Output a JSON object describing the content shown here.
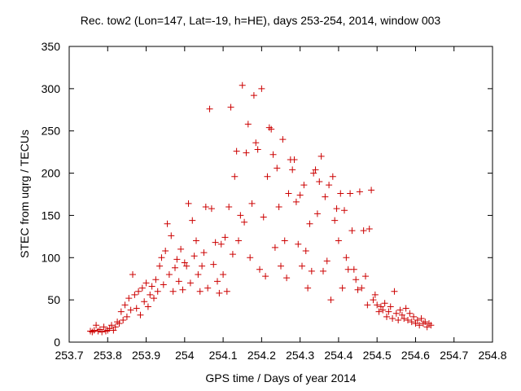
{
  "chart_data": {
    "type": "scatter",
    "title": "Rec. tow2 (Lon=147, Lat=-19, h=HE), days 253-254, 2014, window 003",
    "xlabel": "GPS time / Days of year 2014",
    "ylabel": "STEC from uqrg / TECUs",
    "xlim": [
      253.7,
      254.8
    ],
    "ylim": [
      0,
      350
    ],
    "xticks": [
      253.7,
      253.8,
      253.9,
      254.0,
      254.1,
      254.2,
      254.3,
      254.4,
      254.5,
      254.6,
      254.7,
      254.8
    ],
    "xtick_labels": [
      "253.7",
      "253.8",
      "253.9",
      "254",
      "254.1",
      "254.2",
      "254.3",
      "254.4",
      "254.5",
      "254.6",
      "254.7",
      "254.8"
    ],
    "yticks": [
      0,
      50,
      100,
      150,
      200,
      250,
      300,
      350
    ],
    "ytick_labels": [
      "0",
      "50",
      "100",
      "150",
      "200",
      "250",
      "300",
      "350"
    ],
    "grid": false,
    "marker": "plus",
    "color": "#cc0000",
    "series": [
      {
        "points": [
          [
            253.755,
            13
          ],
          [
            253.76,
            12
          ],
          [
            253.765,
            14
          ],
          [
            253.77,
            20
          ],
          [
            253.775,
            13
          ],
          [
            253.78,
            15
          ],
          [
            253.785,
            12
          ],
          [
            253.79,
            18
          ],
          [
            253.795,
            13
          ],
          [
            253.8,
            14
          ],
          [
            253.805,
            16
          ],
          [
            253.81,
            20
          ],
          [
            253.815,
            14
          ],
          [
            253.82,
            18
          ],
          [
            253.825,
            24
          ],
          [
            253.83,
            22
          ],
          [
            253.835,
            36
          ],
          [
            253.84,
            26
          ],
          [
            253.845,
            44
          ],
          [
            253.85,
            30
          ],
          [
            253.855,
            52
          ],
          [
            253.86,
            38
          ],
          [
            253.865,
            80
          ],
          [
            253.87,
            56
          ],
          [
            253.875,
            40
          ],
          [
            253.88,
            60
          ],
          [
            253.885,
            32
          ],
          [
            253.89,
            64
          ],
          [
            253.895,
            48
          ],
          [
            253.9,
            70
          ],
          [
            253.905,
            42
          ],
          [
            253.91,
            56
          ],
          [
            253.915,
            66
          ],
          [
            253.92,
            52
          ],
          [
            253.925,
            74
          ],
          [
            253.93,
            60
          ],
          [
            253.935,
            90
          ],
          [
            253.94,
            100
          ],
          [
            253.945,
            68
          ],
          [
            253.95,
            108
          ],
          [
            253.955,
            140
          ],
          [
            253.96,
            80
          ],
          [
            253.965,
            126
          ],
          [
            253.97,
            60
          ],
          [
            253.975,
            88
          ],
          [
            253.98,
            98
          ],
          [
            253.985,
            72
          ],
          [
            253.99,
            110
          ],
          [
            253.995,
            62
          ],
          [
            254.0,
            94
          ],
          [
            254.005,
            90
          ],
          [
            254.01,
            164
          ],
          [
            254.015,
            70
          ],
          [
            254.02,
            144
          ],
          [
            254.025,
            102
          ],
          [
            254.03,
            120
          ],
          [
            254.035,
            80
          ],
          [
            254.04,
            60
          ],
          [
            254.045,
            90
          ],
          [
            254.05,
            106
          ],
          [
            254.055,
            160
          ],
          [
            254.06,
            64
          ],
          [
            254.065,
            276
          ],
          [
            254.07,
            158
          ],
          [
            254.075,
            92
          ],
          [
            254.08,
            118
          ],
          [
            254.085,
            72
          ],
          [
            254.09,
            58
          ],
          [
            254.095,
            116
          ],
          [
            254.1,
            80
          ],
          [
            254.105,
            124
          ],
          [
            254.11,
            60
          ],
          [
            254.115,
            160
          ],
          [
            254.12,
            278
          ],
          [
            254.125,
            104
          ],
          [
            254.13,
            196
          ],
          [
            254.135,
            226
          ],
          [
            254.14,
            120
          ],
          [
            254.145,
            150
          ],
          [
            254.15,
            304
          ],
          [
            254.155,
            142
          ],
          [
            254.16,
            224
          ],
          [
            254.165,
            258
          ],
          [
            254.17,
            100
          ],
          [
            254.175,
            164
          ],
          [
            254.18,
            292
          ],
          [
            254.185,
            236
          ],
          [
            254.19,
            228
          ],
          [
            254.195,
            86
          ],
          [
            254.2,
            300
          ],
          [
            254.205,
            148
          ],
          [
            254.21,
            78
          ],
          [
            254.215,
            196
          ],
          [
            254.22,
            254
          ],
          [
            254.225,
            252
          ],
          [
            254.23,
            222
          ],
          [
            254.235,
            112
          ],
          [
            254.24,
            206
          ],
          [
            254.245,
            160
          ],
          [
            254.25,
            90
          ],
          [
            254.255,
            240
          ],
          [
            254.26,
            120
          ],
          [
            254.265,
            76
          ],
          [
            254.27,
            176
          ],
          [
            254.275,
            216
          ],
          [
            254.28,
            204
          ],
          [
            254.285,
            216
          ],
          [
            254.29,
            166
          ],
          [
            254.295,
            116
          ],
          [
            254.3,
            174
          ],
          [
            254.305,
            90
          ],
          [
            254.31,
            186
          ],
          [
            254.315,
            108
          ],
          [
            254.32,
            64
          ],
          [
            254.325,
            140
          ],
          [
            254.33,
            84
          ],
          [
            254.335,
            200
          ],
          [
            254.34,
            204
          ],
          [
            254.345,
            152
          ],
          [
            254.35,
            190
          ],
          [
            254.355,
            220
          ],
          [
            254.36,
            84
          ],
          [
            254.365,
            172
          ],
          [
            254.37,
            96
          ],
          [
            254.375,
            186
          ],
          [
            254.38,
            50
          ],
          [
            254.385,
            196
          ],
          [
            254.39,
            144
          ],
          [
            254.395,
            158
          ],
          [
            254.4,
            120
          ],
          [
            254.405,
            176
          ],
          [
            254.41,
            64
          ],
          [
            254.415,
            156
          ],
          [
            254.42,
            100
          ],
          [
            254.425,
            86
          ],
          [
            254.43,
            176
          ],
          [
            254.435,
            132
          ],
          [
            254.44,
            86
          ],
          [
            254.445,
            74
          ],
          [
            254.45,
            62
          ],
          [
            254.455,
            178
          ],
          [
            254.46,
            64
          ],
          [
            254.465,
            132
          ],
          [
            254.47,
            78
          ],
          [
            254.475,
            44
          ],
          [
            254.48,
            134
          ],
          [
            254.485,
            180
          ],
          [
            254.49,
            50
          ],
          [
            254.495,
            56
          ],
          [
            254.5,
            44
          ],
          [
            254.505,
            36
          ],
          [
            254.51,
            42
          ],
          [
            254.515,
            38
          ],
          [
            254.52,
            46
          ],
          [
            254.525,
            30
          ],
          [
            254.53,
            36
          ],
          [
            254.535,
            42
          ],
          [
            254.54,
            28
          ],
          [
            254.545,
            60
          ],
          [
            254.55,
            34
          ],
          [
            254.555,
            26
          ],
          [
            254.56,
            38
          ],
          [
            254.565,
            32
          ],
          [
            254.57,
            28
          ],
          [
            254.575,
            40
          ],
          [
            254.58,
            26
          ],
          [
            254.585,
            34
          ],
          [
            254.59,
            24
          ],
          [
            254.595,
            30
          ],
          [
            254.6,
            22
          ],
          [
            254.605,
            26
          ],
          [
            254.61,
            20
          ],
          [
            254.615,
            28
          ],
          [
            254.62,
            22
          ],
          [
            254.625,
            24
          ],
          [
            254.63,
            18
          ],
          [
            254.635,
            22
          ],
          [
            254.64,
            20
          ]
        ]
      }
    ]
  }
}
